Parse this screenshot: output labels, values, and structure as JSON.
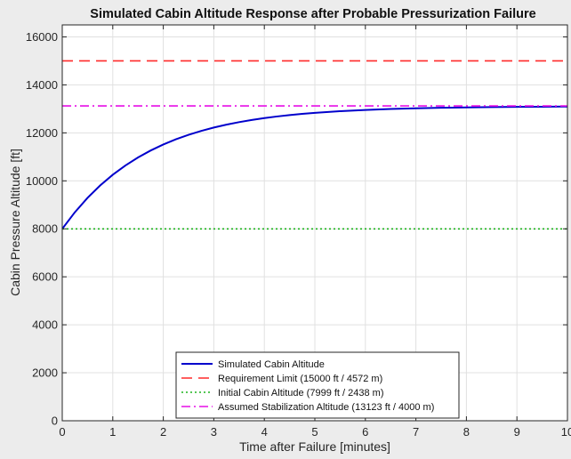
{
  "chart_data": {
    "type": "line",
    "title": "Simulated Cabin Altitude Response after Probable Pressurization Failure",
    "xlabel": "Time after Failure [minutes]",
    "ylabel": "Cabin Pressure Altitude [ft]",
    "xlim": [
      0,
      10
    ],
    "ylim": [
      0,
      16500
    ],
    "xticks": [
      0,
      1,
      2,
      3,
      4,
      5,
      6,
      7,
      8,
      9,
      10
    ],
    "yticks": [
      0,
      2000,
      4000,
      6000,
      8000,
      10000,
      12000,
      14000,
      16000
    ],
    "grid": true,
    "legend_position": "bottom-center",
    "series": [
      {
        "name": "Simulated Cabin Altitude",
        "style": "solid",
        "color": "#0000cc",
        "x": [
          0,
          0.25,
          0.5,
          0.75,
          1,
          1.25,
          1.5,
          1.75,
          2,
          2.25,
          2.5,
          2.75,
          3,
          3.25,
          3.5,
          3.75,
          4,
          4.25,
          4.5,
          4.75,
          5,
          5.5,
          6,
          6.5,
          7,
          7.5,
          8,
          8.5,
          9,
          9.5,
          10
        ],
        "y": [
          8000,
          8692,
          9290,
          9807,
          10254,
          10641,
          10976,
          11265,
          11515,
          11732,
          11919,
          12081,
          12221,
          12342,
          12447,
          12537,
          12616,
          12683,
          12742,
          12792,
          12836,
          12905,
          12956,
          12995,
          13024,
          13046,
          13062,
          13075,
          13084,
          13091,
          13096
        ]
      },
      {
        "name": "Requirement Limit (15000 ft / 4572 m)",
        "style": "dashed",
        "color": "#ff2a2a",
        "x": [
          0,
          10
        ],
        "y": [
          15000,
          15000
        ]
      },
      {
        "name": "Initial Cabin Altitude (7999 ft / 2438 m)",
        "style": "dotted",
        "color": "#1db31d",
        "x": [
          0,
          10
        ],
        "y": [
          7999,
          7999
        ]
      },
      {
        "name": "Assumed Stabilization Altitude (13123 ft / 4000 m)",
        "style": "dashdot",
        "color": "#e60fe6",
        "x": [
          0,
          10
        ],
        "y": [
          13123,
          13123
        ]
      }
    ]
  }
}
